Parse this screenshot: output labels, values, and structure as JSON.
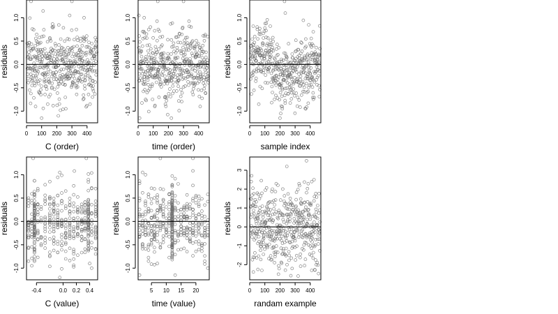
{
  "chart_data": [
    {
      "type": "scatter",
      "xlabel": "C (order)",
      "ylabel": "residuals",
      "xlim": [
        0,
        470
      ],
      "ylim": [
        -1.25,
        1.38
      ],
      "xticks": [
        0,
        100,
        200,
        300,
        400
      ],
      "xtick_labels": [
        "0",
        "100",
        "200",
        "300",
        "400"
      ],
      "yticks": [
        -1.0,
        -0.5,
        0.0,
        0.5,
        1.0
      ],
      "ytick_labels": [
        "-1.0",
        "-0.5",
        "0.0",
        "0.5",
        "1.0"
      ],
      "hline": 0,
      "n_points": 460,
      "x_spacing": "uniform",
      "points": [
        [
          30,
          1.35
        ],
        [
          300,
          1.35
        ],
        [
          285,
          1.05
        ],
        [
          100,
          -1.15
        ],
        [
          210,
          -1.1
        ],
        [
          380,
          1.0
        ],
        [
          60,
          -0.9
        ],
        [
          140,
          -0.85
        ],
        [
          260,
          -0.95
        ],
        [
          420,
          -0.85
        ],
        [
          170,
          0.8
        ],
        [
          330,
          0.75
        ]
      ]
    },
    {
      "type": "scatter",
      "xlabel": "time (order)",
      "ylabel": "residuals",
      "xlim": [
        0,
        470
      ],
      "ylim": [
        -1.25,
        1.38
      ],
      "xticks": [
        0,
        100,
        200,
        300,
        400
      ],
      "xtick_labels": [
        "0",
        "100",
        "200",
        "300",
        "400"
      ],
      "yticks": [
        -1.0,
        -0.5,
        0.0,
        0.5,
        1.0
      ],
      "ytick_labels": [
        "-1.0",
        "-0.5",
        "0.0",
        "0.5",
        "1.0"
      ],
      "hline": 0,
      "n_points": 460,
      "x_spacing": "uniform",
      "points": [
        [
          5,
          1.05
        ],
        [
          40,
          1.0
        ],
        [
          130,
          1.35
        ],
        [
          300,
          1.35
        ],
        [
          10,
          -1.15
        ],
        [
          220,
          -1.15
        ],
        [
          110,
          -0.9
        ],
        [
          180,
          -0.85
        ],
        [
          410,
          -0.9
        ],
        [
          70,
          0.75
        ],
        [
          350,
          0.8
        ]
      ]
    },
    {
      "type": "scatter",
      "xlabel": "sample index",
      "ylabel": "residuals",
      "xlim": [
        0,
        470
      ],
      "ylim": [
        -1.25,
        1.38
      ],
      "xticks": [
        0,
        100,
        200,
        300,
        400
      ],
      "xtick_labels": [
        "0",
        "100",
        "200",
        "300",
        "400"
      ],
      "yticks": [
        -1.0,
        -0.5,
        0.0,
        0.5,
        1.0
      ],
      "ytick_labels": [
        "-1.0",
        "-0.5",
        "0.0",
        "0.5",
        "1.0"
      ],
      "hline": 0,
      "n_points": 460,
      "x_spacing": "uniform",
      "points": [
        [
          230,
          1.35
        ],
        [
          235,
          1.1
        ],
        [
          200,
          -1.15
        ],
        [
          205,
          -1.05
        ],
        [
          215,
          -0.95
        ],
        [
          60,
          -0.85
        ],
        [
          370,
          -0.95
        ],
        [
          390,
          0.85
        ],
        [
          420,
          0.7
        ],
        [
          150,
          -0.6
        ]
      ]
    },
    {
      "type": "scatter",
      "xlabel": "C (value)",
      "ylabel": "residuals",
      "xlim": [
        -0.55,
        0.52
      ],
      "ylim": [
        -1.25,
        1.38
      ],
      "xticks": [
        -0.4,
        0.0,
        0.2,
        0.4
      ],
      "xtick_labels": [
        "-0.4",
        "0.0",
        "0.2",
        "0.4"
      ],
      "yticks": [
        -1.0,
        -0.5,
        0.0,
        0.5,
        1.0
      ],
      "ytick_labels": [
        "-1.0",
        "-0.5",
        "0.0",
        "0.5",
        "1.0"
      ],
      "hline": 0,
      "n_points": 460,
      "x_values": [
        -0.52,
        -0.47,
        -0.43,
        -0.38,
        -0.33,
        -0.27,
        -0.2,
        -0.14,
        -0.08,
        -0.02,
        0.04,
        0.1,
        0.16,
        0.22,
        0.28,
        0.33,
        0.38,
        0.43,
        0.49
      ],
      "dense_columns": [
        -0.43,
        0.38
      ],
      "points": [
        [
          -0.45,
          1.35
        ],
        [
          0.35,
          1.35
        ],
        [
          -0.05,
          1.05
        ],
        [
          0.17,
          1.08
        ],
        [
          -0.05,
          -1.2
        ],
        [
          -0.47,
          -0.95
        ],
        [
          0.4,
          -0.9
        ],
        [
          -0.2,
          -0.75
        ],
        [
          0.43,
          -1.0
        ]
      ]
    },
    {
      "type": "scatter",
      "xlabel": "time (value)",
      "ylabel": "residuals",
      "xlim": [
        0.5,
        24.5
      ],
      "ylim": [
        -1.25,
        1.38
      ],
      "xticks": [
        5,
        10,
        15,
        20
      ],
      "xtick_labels": [
        "5",
        "10",
        "15",
        "20"
      ],
      "yticks": [
        -1.0,
        -0.5,
        0.0,
        0.5,
        1.0
      ],
      "ytick_labels": [
        "-1.0",
        "-0.5",
        "0.0",
        "0.5",
        "1.0"
      ],
      "hline": 0,
      "n_points": 460,
      "x_values": [
        1,
        2,
        3,
        4,
        5,
        6,
        7,
        8,
        9,
        10,
        11,
        12,
        13,
        14,
        15,
        16,
        17,
        18,
        19,
        20,
        21,
        22,
        23,
        24
      ],
      "dense_columns": [
        12
      ],
      "points": [
        [
          2,
          1.05
        ],
        [
          3,
          1.0
        ],
        [
          8,
          1.35
        ],
        [
          19,
          1.35
        ],
        [
          1,
          -1.15
        ],
        [
          13,
          -1.15
        ],
        [
          4,
          -0.85
        ],
        [
          7,
          -0.9
        ],
        [
          24,
          -1.0
        ],
        [
          23,
          -0.85
        ]
      ]
    },
    {
      "type": "scatter",
      "xlabel": "randam example",
      "ylabel": "residuals",
      "xlim": [
        0,
        470
      ],
      "ylim": [
        -2.8,
        3.7
      ],
      "xticks": [
        0,
        100,
        200,
        300,
        400
      ],
      "xtick_labels": [
        "0",
        "100",
        "200",
        "300",
        "400"
      ],
      "yticks": [
        -2,
        -1,
        0,
        1,
        2,
        3
      ],
      "ytick_labels": [
        "-2",
        "-1",
        "0",
        "1",
        "2",
        "3"
      ],
      "hline": 0,
      "n_points": 460,
      "x_spacing": "uniform",
      "points": [
        [
          375,
          3.5
        ],
        [
          245,
          3.2
        ],
        [
          425,
          2.5
        ],
        [
          410,
          2.4
        ],
        [
          10,
          2.4
        ],
        [
          320,
          -2.6
        ],
        [
          190,
          -2.5
        ],
        [
          80,
          -2.3
        ],
        [
          440,
          -2.0
        ],
        [
          150,
          2.0
        ],
        [
          280,
          -2.2
        ]
      ]
    }
  ]
}
